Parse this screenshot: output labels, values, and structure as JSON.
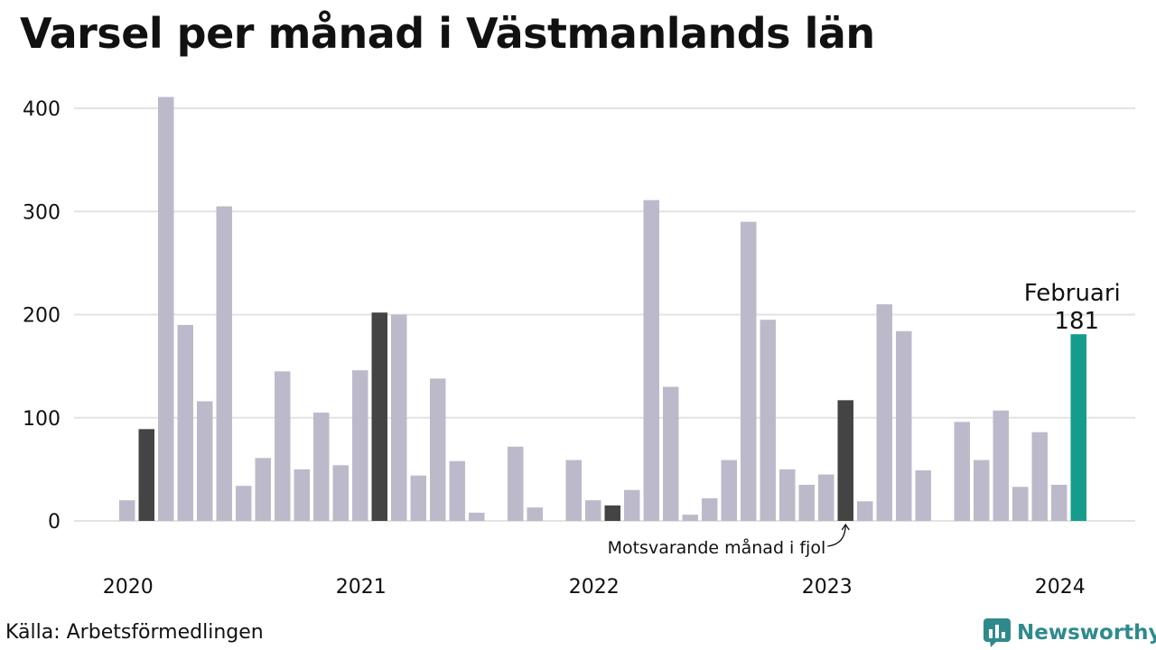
{
  "title": "Varsel per månad i Västmanlands län",
  "source": "Källa: Arbetsförmedlingen",
  "brand": {
    "name": "Newsworthy",
    "color": "#2f8a8c",
    "icon": "bar-chart-speech-icon"
  },
  "colors": {
    "default": "#bcbaca",
    "previous_year": "#444444",
    "current": "#159c8c",
    "grid": "#e3e3e3",
    "text": "#111111"
  },
  "annotations": {
    "current_month": "Februari",
    "current_value": "181",
    "previous_year_note": "Motsvarande månad i fjol"
  },
  "chart_data": {
    "type": "bar",
    "title": "Varsel per månad i Västmanlands län",
    "xlabel": "",
    "ylabel": "",
    "ylim": [
      0,
      420
    ],
    "yticks": [
      0,
      100,
      200,
      300,
      400
    ],
    "grid": true,
    "x_tick_labels": [
      "2020",
      "2021",
      "2022",
      "2023",
      "2024"
    ],
    "x_tick_months": [
      "2020-01",
      "2021-01",
      "2022-01",
      "2023-01",
      "2024-01"
    ],
    "months": [
      "2020-01",
      "2020-02",
      "2020-03",
      "2020-04",
      "2020-05",
      "2020-06",
      "2020-07",
      "2020-08",
      "2020-09",
      "2020-10",
      "2020-11",
      "2020-12",
      "2021-01",
      "2021-02",
      "2021-03",
      "2021-04",
      "2021-05",
      "2021-06",
      "2021-07",
      "2021-08",
      "2021-09",
      "2021-10",
      "2021-11",
      "2021-12",
      "2022-01",
      "2022-02",
      "2022-03",
      "2022-04",
      "2022-05",
      "2022-06",
      "2022-07",
      "2022-08",
      "2022-09",
      "2022-10",
      "2022-11",
      "2022-12",
      "2023-01",
      "2023-02",
      "2023-03",
      "2023-04",
      "2023-05",
      "2023-06",
      "2023-07",
      "2023-08",
      "2023-09",
      "2023-10",
      "2023-11",
      "2023-12",
      "2024-01",
      "2024-02"
    ],
    "values": [
      20,
      89,
      411,
      190,
      116,
      305,
      34,
      61,
      145,
      50,
      105,
      54,
      146,
      202,
      200,
      44,
      138,
      58,
      8,
      0,
      72,
      13,
      0,
      59,
      20,
      15,
      30,
      311,
      130,
      6,
      22,
      59,
      290,
      195,
      50,
      35,
      45,
      117,
      19,
      210,
      184,
      49,
      0,
      96,
      59,
      107,
      33,
      86,
      35,
      181
    ],
    "highlight": {
      "previous_year": [
        "2020-02",
        "2021-02",
        "2022-02",
        "2023-02"
      ],
      "current": "2024-02"
    }
  }
}
